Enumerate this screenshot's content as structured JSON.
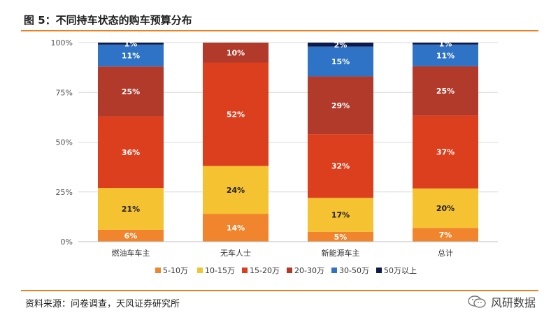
{
  "header": {
    "title": "图 5：不同持车状态的购车预算分布"
  },
  "footer": {
    "source": "资料来源：问卷调查，天风证券研究所",
    "brand": "风研数据",
    "brand_icon": "wechat-icon"
  },
  "chart_data": {
    "type": "bar",
    "stacked": true,
    "percent": true,
    "categories": [
      "燃油车车主",
      "无车人士",
      "新能源车主",
      "总计"
    ],
    "y_ticks": [
      "0%",
      "25%",
      "50%",
      "75%",
      "100%"
    ],
    "ylim": [
      0,
      100
    ],
    "legend_position": "bottom",
    "series": [
      {
        "name": "5-10万",
        "color": "#f0852d",
        "values": [
          6,
          14,
          5,
          7
        ],
        "labels": [
          "6%",
          "14%",
          "5%",
          "7%"
        ]
      },
      {
        "name": "10-15万",
        "color": "#f5c231",
        "values": [
          21,
          24,
          17,
          20
        ],
        "labels": [
          "21%",
          "24%",
          "17%",
          "20%"
        ]
      },
      {
        "name": "15-20万",
        "color": "#dc3f1d",
        "values": [
          36,
          52,
          32,
          37
        ],
        "labels": [
          "36%",
          "52%",
          "32%",
          "37%"
        ]
      },
      {
        "name": "20-30万",
        "color": "#b13a2b",
        "values": [
          25,
          10,
          29,
          25
        ],
        "labels": [
          "25%",
          "10%",
          "29%",
          "25%"
        ]
      },
      {
        "name": "30-50万",
        "color": "#2e73c6",
        "values": [
          11,
          0,
          15,
          11
        ],
        "labels": [
          "11%",
          "",
          "15%",
          "11%"
        ]
      },
      {
        "name": "50万以上",
        "color": "#0d1b4c",
        "values": [
          1,
          0,
          2,
          1
        ],
        "labels": [
          "1%",
          "",
          "2%",
          "1%"
        ]
      }
    ]
  }
}
